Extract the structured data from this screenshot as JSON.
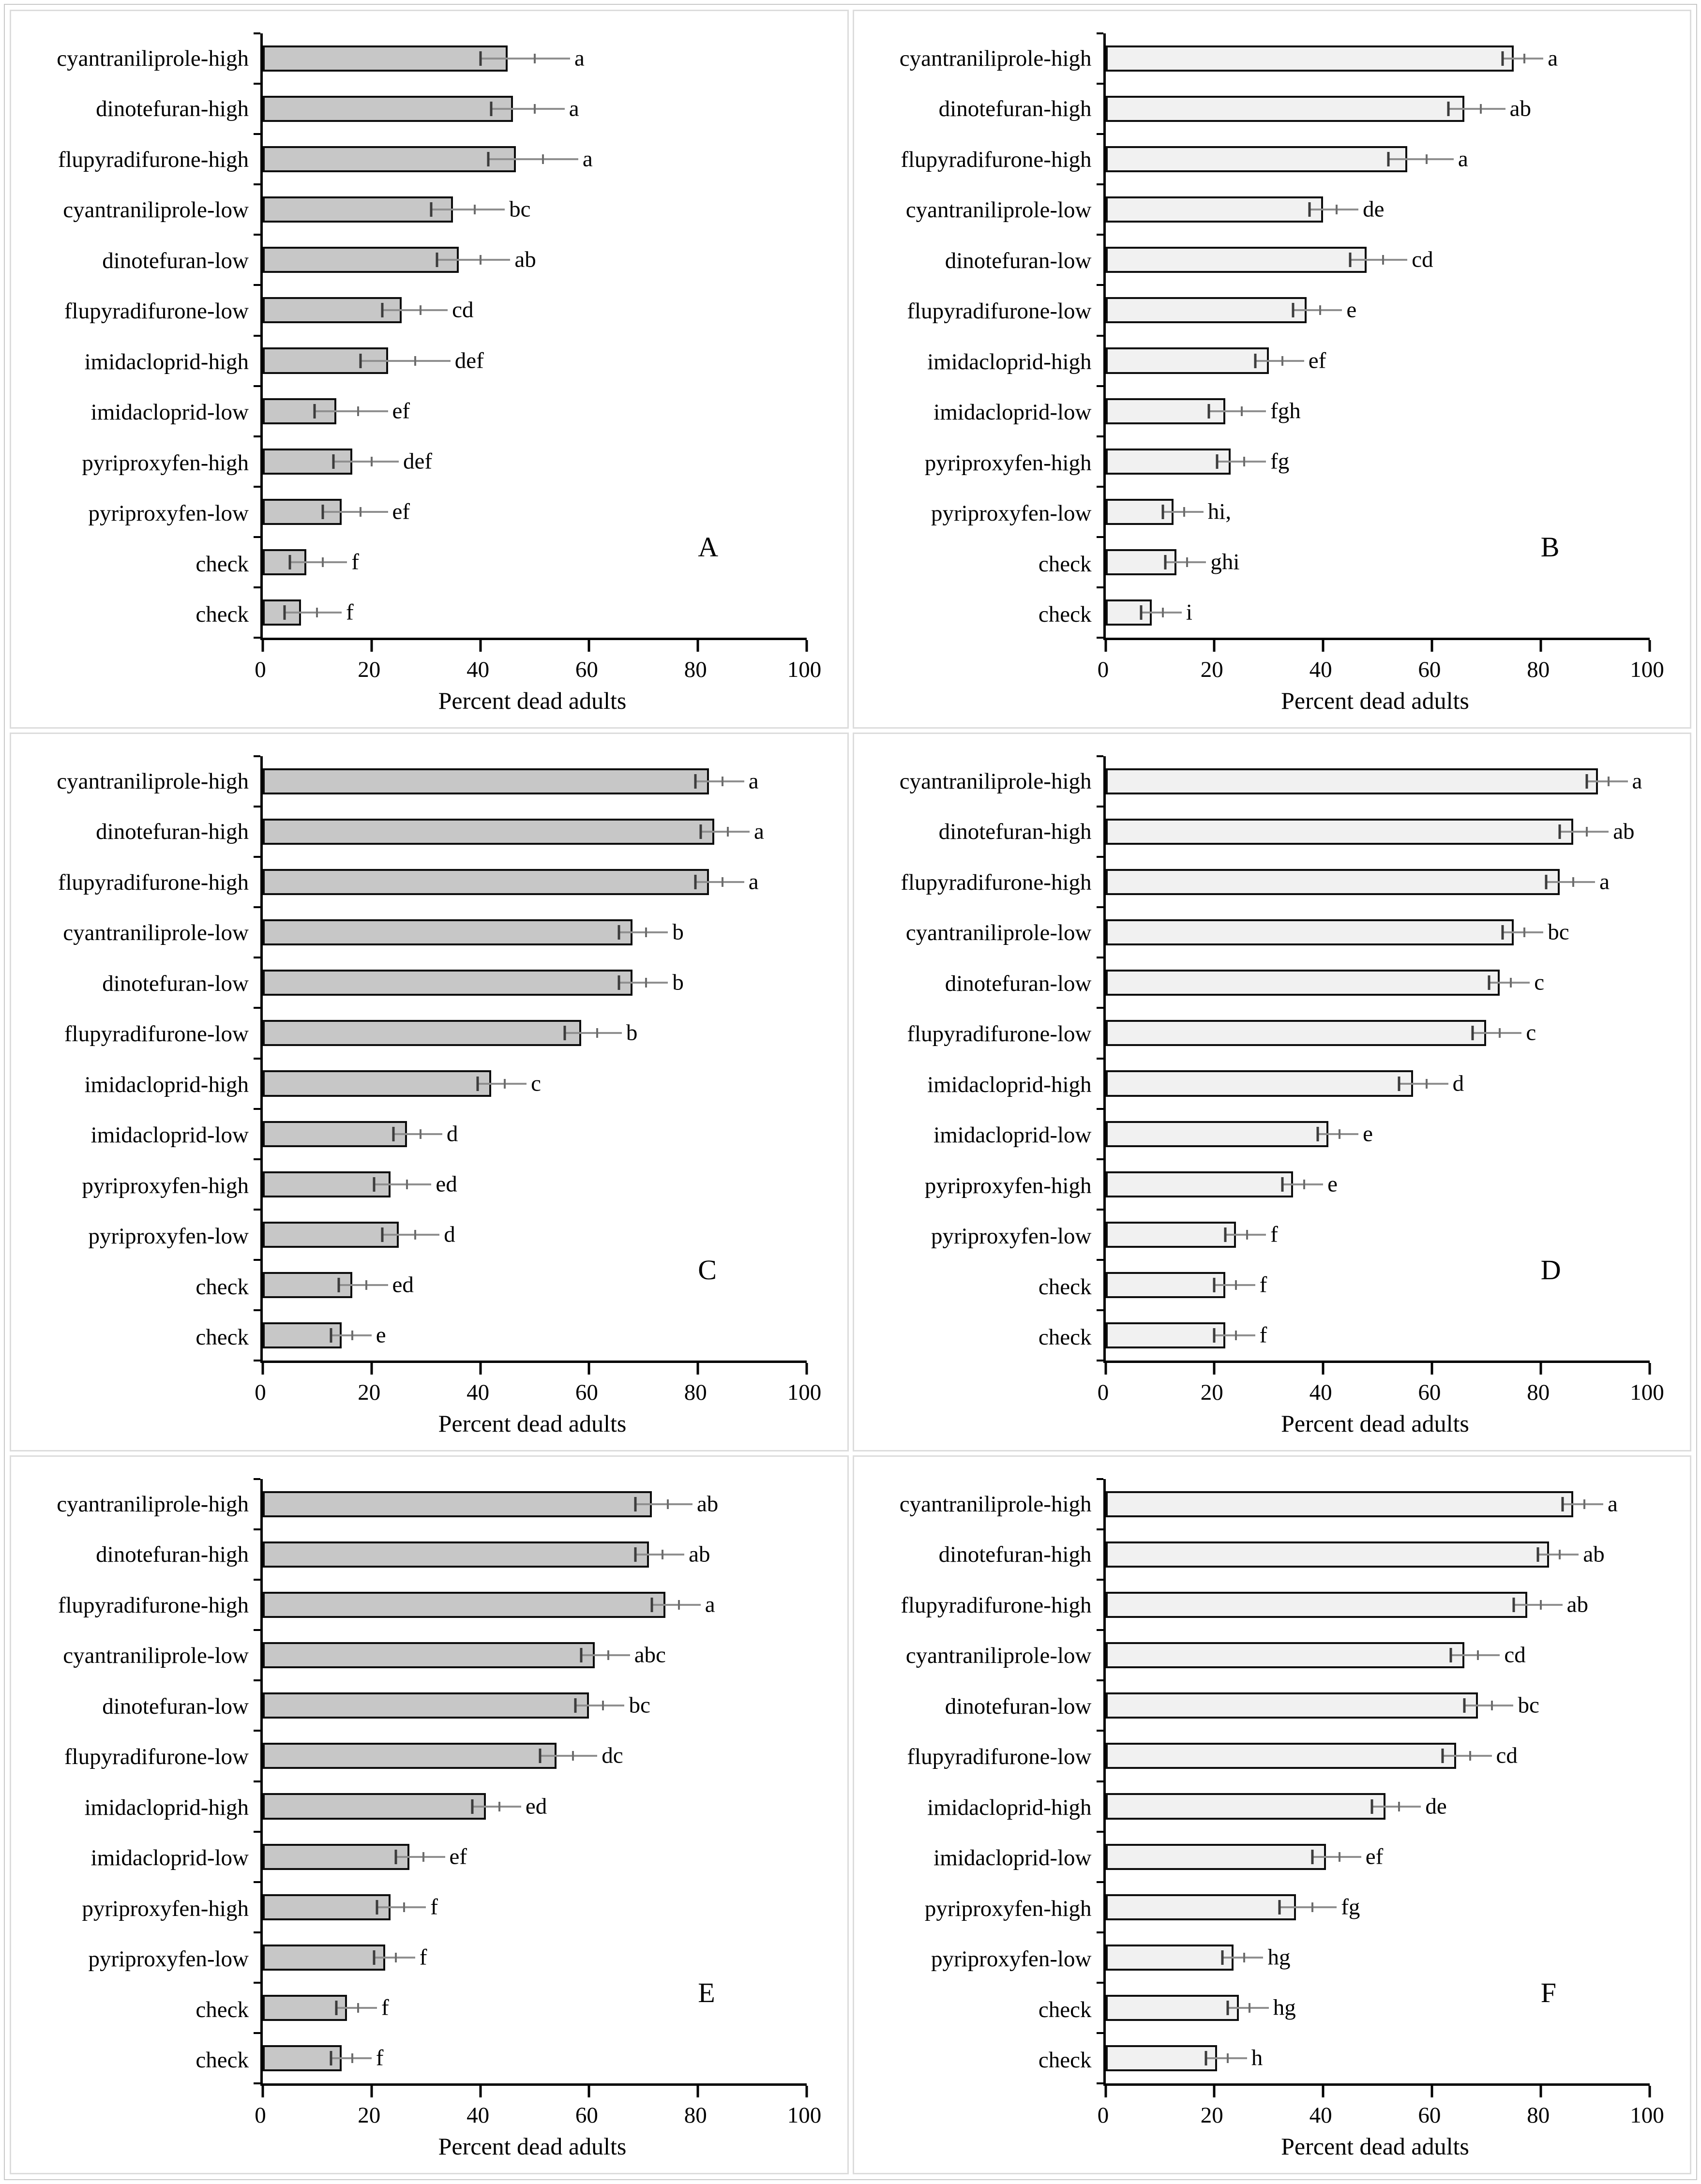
{
  "figure": {
    "xlabel": "Percent dead adults",
    "x_ticks": [
      "0",
      "20",
      "40",
      "60",
      "80",
      "100"
    ],
    "x_max": 100
  },
  "chart_data": [
    {
      "type": "bar",
      "orientation": "horizontal",
      "panel": "A",
      "bar_color": "#c7c7c7",
      "xlabel": "Percent dead adults",
      "xlim": [
        0,
        100
      ],
      "categories": [
        "cyantraniliprole-high",
        "dinotefuran-high",
        "flupyradifurone-high",
        "cyantraniliprole-low",
        "dinotefuran-low",
        "flupyradifurone-low",
        "imidacloprid-high",
        "imidacloprid-low",
        "pyriproxyfen-high",
        "pyriproxyfen-low",
        "check",
        "check"
      ],
      "values": [
        45,
        46,
        46.5,
        35,
        36,
        25.5,
        23,
        13.5,
        16.5,
        14.5,
        8,
        7
      ],
      "errors": [
        5,
        4,
        5,
        4,
        4,
        3.5,
        5,
        4,
        3.5,
        3.5,
        3,
        3
      ],
      "sig_letters": [
        "a",
        "a",
        "a",
        "bc",
        "ab",
        "cd",
        "def",
        "ef",
        "def",
        "ef",
        "f",
        "f"
      ]
    },
    {
      "type": "bar",
      "orientation": "horizontal",
      "panel": "B",
      "bar_color": "#f1f1f1",
      "xlabel": "Percent dead adults",
      "xlim": [
        0,
        100
      ],
      "categories": [
        "cyantraniliprole-high",
        "dinotefuran-high",
        "flupyradifurone-high",
        "cyantraniliprole-low",
        "dinotefuran-low",
        "flupyradifurone-low",
        "imidacloprid-high",
        "imidacloprid-low",
        "pyriproxyfen-high",
        "pyriproxyfen-low",
        "check",
        "check"
      ],
      "values": [
        75,
        66,
        55.5,
        40,
        48,
        37,
        30,
        22,
        23,
        12.5,
        13,
        8.5
      ],
      "errors": [
        2,
        3,
        3.5,
        2.5,
        3,
        2.5,
        2.5,
        3,
        2.5,
        2,
        2,
        2
      ],
      "sig_letters": [
        "a",
        "ab",
        "a",
        "de",
        "cd",
        "e",
        "ef",
        "fgh",
        "fg",
        "hi,",
        "ghi",
        "i"
      ]
    },
    {
      "type": "bar",
      "orientation": "horizontal",
      "panel": "C",
      "bar_color": "#c7c7c7",
      "xlabel": "Percent dead adults",
      "xlim": [
        0,
        100
      ],
      "categories": [
        "cyantraniliprole-high",
        "dinotefuran-high",
        "flupyradifurone-high",
        "cyantraniliprole-low",
        "dinotefuran-low",
        "flupyradifurone-low",
        "imidacloprid-high",
        "imidacloprid-low",
        "pyriproxyfen-high",
        "pyriproxyfen-low",
        "check",
        "check"
      ],
      "values": [
        82,
        83,
        82,
        68,
        68,
        58.5,
        42,
        26.5,
        23.5,
        25,
        16.5,
        14.5
      ],
      "errors": [
        2.5,
        2.5,
        2.5,
        2.5,
        2.5,
        3,
        2.5,
        2.5,
        3,
        3,
        2.5,
        2
      ],
      "sig_letters": [
        "a",
        "a",
        "a",
        "b",
        "b",
        "b",
        "c",
        "d",
        "ed",
        "d",
        "ed",
        "e"
      ]
    },
    {
      "type": "bar",
      "orientation": "horizontal",
      "panel": "D",
      "bar_color": "#f1f1f1",
      "xlabel": "Percent dead adults",
      "xlim": [
        0,
        100
      ],
      "categories": [
        "cyantraniliprole-high",
        "dinotefuran-high",
        "flupyradifurone-high",
        "cyantraniliprole-low",
        "dinotefuran-low",
        "flupyradifurone-low",
        "imidacloprid-high",
        "imidacloprid-low",
        "pyriproxyfen-high",
        "pyriproxyfen-low",
        "check",
        "check"
      ],
      "values": [
        90.5,
        86,
        83.5,
        75,
        72.5,
        70,
        56.5,
        41,
        34.5,
        24,
        22,
        22
      ],
      "errors": [
        2,
        2.5,
        2.5,
        2,
        2,
        2.5,
        2.5,
        2,
        2,
        2,
        2,
        2
      ],
      "sig_letters": [
        "a",
        "ab",
        "a",
        "bc",
        "c",
        "c",
        "d",
        "e",
        "e",
        "f",
        "f",
        "f"
      ]
    },
    {
      "type": "bar",
      "orientation": "horizontal",
      "panel": "E",
      "bar_color": "#c7c7c7",
      "xlabel": "Percent dead adults",
      "xlim": [
        0,
        100
      ],
      "categories": [
        "cyantraniliprole-high",
        "dinotefuran-high",
        "flupyradifurone-high",
        "cyantraniliprole-low",
        "dinotefuran-low",
        "flupyradifurone-low",
        "imidacloprid-high",
        "imidacloprid-low",
        "pyriproxyfen-high",
        "pyriproxyfen-low",
        "check",
        "check"
      ],
      "values": [
        71.5,
        71,
        74,
        61,
        60,
        54,
        41,
        27,
        23.5,
        22.5,
        15.5,
        14.5
      ],
      "errors": [
        3,
        2.5,
        2.5,
        2.5,
        2.5,
        3,
        2.5,
        2.5,
        2.5,
        2,
        2,
        2
      ],
      "sig_letters": [
        "ab",
        "ab",
        "a",
        "abc",
        "bc",
        "dc",
        "ed",
        "ef",
        "f",
        "f",
        "f",
        "f"
      ]
    },
    {
      "type": "bar",
      "orientation": "horizontal",
      "panel": "F",
      "bar_color": "#f1f1f1",
      "xlabel": "Percent dead adults",
      "xlim": [
        0,
        100
      ],
      "categories": [
        "cyantraniliprole-high",
        "dinotefuran-high",
        "flupyradifurone-high",
        "cyantraniliprole-low",
        "dinotefuran-low",
        "flupyradifurone-low",
        "imidacloprid-high",
        "imidacloprid-low",
        "pyriproxyfen-high",
        "pyriproxyfen-low",
        "check",
        "check"
      ],
      "values": [
        86,
        81.5,
        77.5,
        66,
        68.5,
        64.5,
        51.5,
        40.5,
        35,
        23.5,
        24.5,
        20.5
      ],
      "errors": [
        2,
        2,
        2.5,
        2.5,
        2.5,
        2.5,
        2.5,
        2.5,
        3,
        2,
        2,
        2
      ],
      "sig_letters": [
        "a",
        "ab",
        "ab",
        "cd",
        "bc",
        "cd",
        "de",
        "ef",
        "fg",
        "hg",
        "hg",
        "h"
      ]
    }
  ]
}
